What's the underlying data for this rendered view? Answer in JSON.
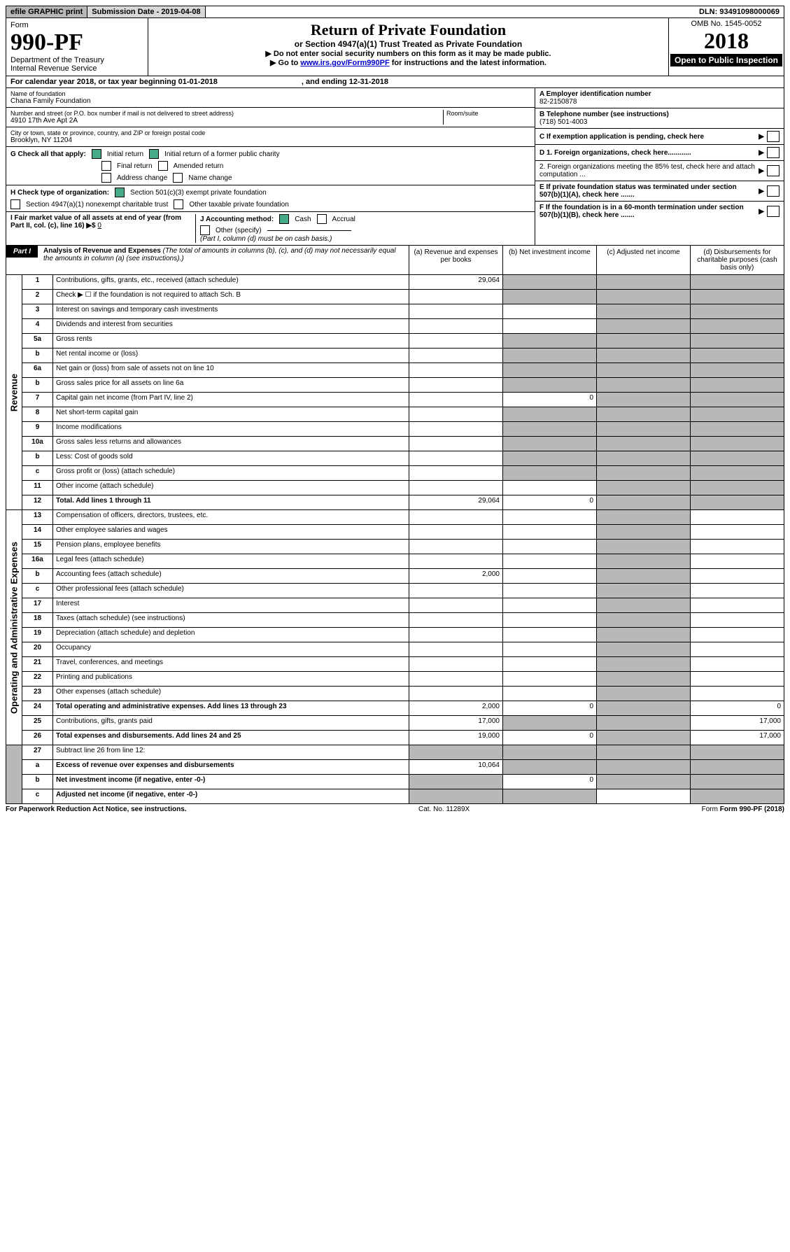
{
  "topBar": {
    "efile": "efile GRAPHIC print",
    "submission": "Submission Date - 2019-04-08",
    "dln": "DLN: 93491098000069"
  },
  "header": {
    "formWord": "Form",
    "formNum": "990-PF",
    "dept": "Department of the Treasury",
    "irs": "Internal Revenue Service",
    "title": "Return of Private Foundation",
    "subtitle": "or Section 4947(a)(1) Trust Treated as Private Foundation",
    "note1": "▶ Do not enter social security numbers on this form as it may be made public.",
    "note2a": "▶ Go to ",
    "note2link": "www.irs.gov/Form990PF",
    "note2b": " for instructions and the latest information.",
    "omb": "OMB No. 1545-0052",
    "year": "2018",
    "open": "Open to Public Inspection"
  },
  "calendar": "For calendar year 2018, or tax year beginning 01-01-2018",
  "ending": ", and ending 12-31-2018",
  "name": {
    "label": "Name of foundation",
    "value": "Chana Family Foundation"
  },
  "address": {
    "label": "Number and street (or P.O. box number if mail is not delivered to street address)",
    "value": "4910 17th Ave Apt 2A",
    "room": "Room/suite"
  },
  "city": {
    "label": "City or town, state or province, country, and ZIP or foreign postal code",
    "value": "Brooklyn, NY  11204"
  },
  "ein": {
    "label": "A Employer identification number",
    "value": "82-2150878"
  },
  "phone": {
    "label": "B Telephone number (see instructions)",
    "value": "(718) 501-4003"
  },
  "exemptC": "C  If exemption application is pending, check here",
  "d1": "D 1. Foreign organizations, check here............",
  "d2": "2. Foreign organizations meeting the 85% test, check here and attach computation ...",
  "e": "E  If private foundation status was terminated under section 507(b)(1)(A), check here .......",
  "f": "F  If the foundation is in a 60-month termination under section 507(b)(1)(B), check here .......",
  "g": {
    "label": "G Check all that apply:",
    "opts": [
      "Initial return",
      "Initial return of a former public charity",
      "Final return",
      "Amended return",
      "Address change",
      "Name change"
    ]
  },
  "h": {
    "label": "H Check type of organization:",
    "opt1": "Section 501(c)(3) exempt private foundation",
    "opt2": "Section 4947(a)(1) nonexempt charitable trust",
    "opt3": "Other taxable private foundation"
  },
  "i": {
    "label": "I Fair market value of all assets at end of year (from Part II, col. (c), line 16) ▶$",
    "value": "0"
  },
  "j": {
    "label": "J Accounting method:",
    "cash": "Cash",
    "accrual": "Accrual",
    "other": "Other (specify)",
    "note": "(Part I, column (d) must be on cash basis.)"
  },
  "part1": {
    "tag": "Part I",
    "title": "Analysis of Revenue and Expenses",
    "note": " (The total of amounts in columns (b), (c), and (d) may not necessarily equal the amounts in column (a) (see instructions).)",
    "colA": "(a)  Revenue and expenses per books",
    "colB": "(b)  Net investment income",
    "colC": "(c)  Adjusted net income",
    "colD": "(d)  Disbursements for charitable purposes (cash basis only)"
  },
  "revenueLabel": "Revenue",
  "expenseLabel": "Operating and Administrative Expenses",
  "rows": [
    {
      "n": "1",
      "d": "Contributions, gifts, grants, etc., received (attach schedule)",
      "a": "29,064"
    },
    {
      "n": "2",
      "d": "Check ▶ ☐ if the foundation is not required to attach Sch. B"
    },
    {
      "n": "3",
      "d": "Interest on savings and temporary cash investments"
    },
    {
      "n": "4",
      "d": "Dividends and interest from securities"
    },
    {
      "n": "5a",
      "d": "Gross rents"
    },
    {
      "n": "b",
      "d": "Net rental income or (loss)"
    },
    {
      "n": "6a",
      "d": "Net gain or (loss) from sale of assets not on line 10"
    },
    {
      "n": "b",
      "d": "Gross sales price for all assets on line 6a"
    },
    {
      "n": "7",
      "d": "Capital gain net income (from Part IV, line 2)",
      "b": "0"
    },
    {
      "n": "8",
      "d": "Net short-term capital gain"
    },
    {
      "n": "9",
      "d": "Income modifications"
    },
    {
      "n": "10a",
      "d": "Gross sales less returns and allowances"
    },
    {
      "n": "b",
      "d": "Less: Cost of goods sold"
    },
    {
      "n": "c",
      "d": "Gross profit or (loss) (attach schedule)"
    },
    {
      "n": "11",
      "d": "Other income (attach schedule)"
    },
    {
      "n": "12",
      "d": "Total. Add lines 1 through 11",
      "bold": true,
      "a": "29,064",
      "b": "0"
    }
  ],
  "expRows": [
    {
      "n": "13",
      "d": "Compensation of officers, directors, trustees, etc."
    },
    {
      "n": "14",
      "d": "Other employee salaries and wages"
    },
    {
      "n": "15",
      "d": "Pension plans, employee benefits"
    },
    {
      "n": "16a",
      "d": "Legal fees (attach schedule)"
    },
    {
      "n": "b",
      "d": "Accounting fees (attach schedule)",
      "a": "2,000"
    },
    {
      "n": "c",
      "d": "Other professional fees (attach schedule)"
    },
    {
      "n": "17",
      "d": "Interest"
    },
    {
      "n": "18",
      "d": "Taxes (attach schedule) (see instructions)"
    },
    {
      "n": "19",
      "d": "Depreciation (attach schedule) and depletion"
    },
    {
      "n": "20",
      "d": "Occupancy"
    },
    {
      "n": "21",
      "d": "Travel, conferences, and meetings"
    },
    {
      "n": "22",
      "d": "Printing and publications"
    },
    {
      "n": "23",
      "d": "Other expenses (attach schedule)"
    },
    {
      "n": "24",
      "d": "Total operating and administrative expenses. Add lines 13 through 23",
      "bold": true,
      "a": "2,000",
      "b": "0",
      "dd": "0"
    },
    {
      "n": "25",
      "d": "Contributions, gifts, grants paid",
      "a": "17,000",
      "dd": "17,000"
    },
    {
      "n": "26",
      "d": "Total expenses and disbursements. Add lines 24 and 25",
      "bold": true,
      "a": "19,000",
      "b": "0",
      "dd": "17,000"
    }
  ],
  "bottomRows": [
    {
      "n": "27",
      "d": "Subtract line 26 from line 12:"
    },
    {
      "n": "a",
      "d": "Excess of revenue over expenses and disbursements",
      "bold": true,
      "a": "10,064"
    },
    {
      "n": "b",
      "d": "Net investment income (if negative, enter -0-)",
      "bold": true,
      "b": "0"
    },
    {
      "n": "c",
      "d": "Adjusted net income (if negative, enter -0-)",
      "bold": true
    }
  ],
  "footer": {
    "left": "For Paperwork Reduction Act Notice, see instructions.",
    "mid": "Cat. No. 11289X",
    "right": "Form 990-PF (2018)"
  }
}
